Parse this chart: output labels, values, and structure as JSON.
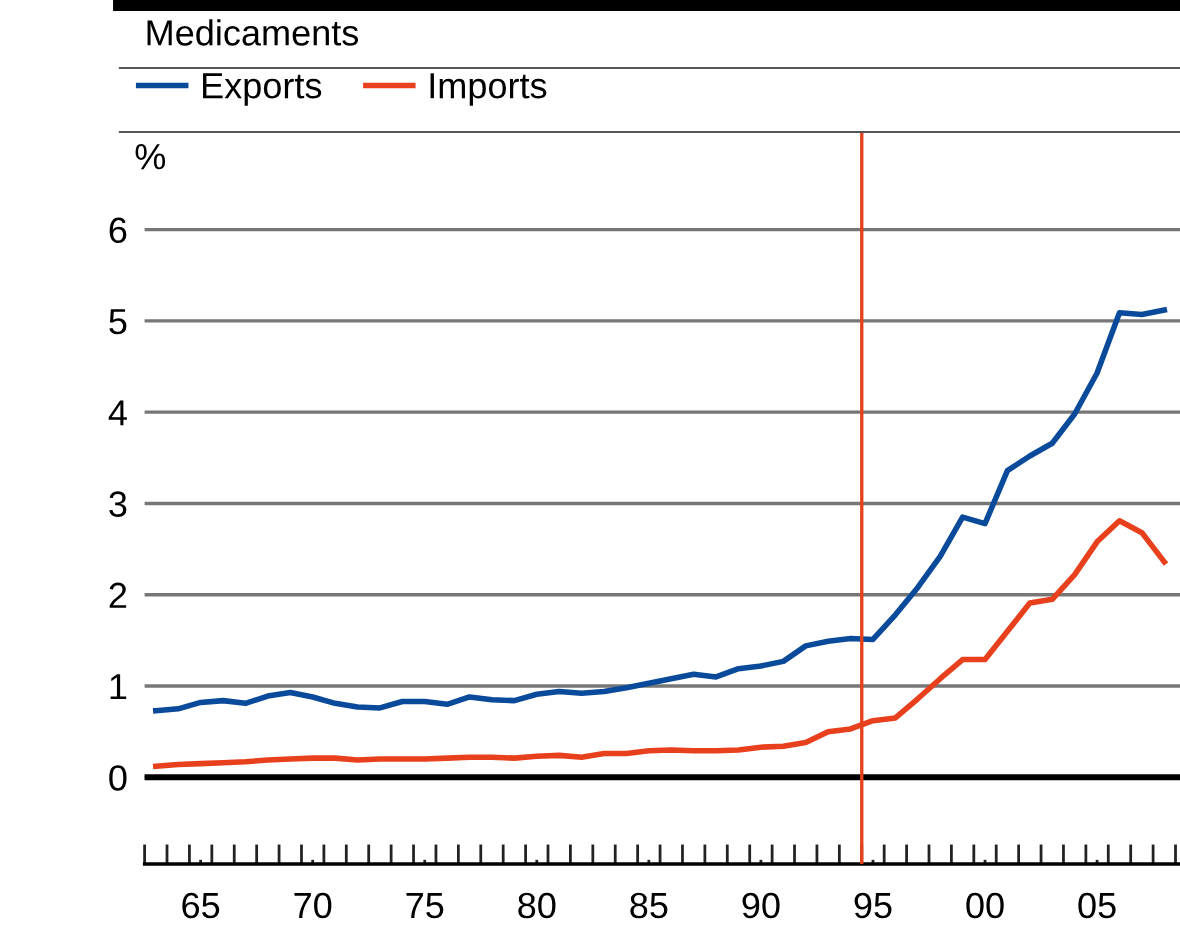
{
  "chart_data": {
    "type": "line",
    "title": "Medicaments",
    "ylabel": "%",
    "x": [
      1963,
      1964,
      1965,
      1966,
      1967,
      1968,
      1969,
      1970,
      1971,
      1972,
      1973,
      1974,
      1975,
      1976,
      1977,
      1978,
      1979,
      1980,
      1981,
      1982,
      1983,
      1984,
      1985,
      1986,
      1987,
      1988,
      1989,
      1990,
      1991,
      1992,
      1993,
      1994,
      1995,
      1996,
      1997,
      1998,
      1999,
      2000,
      2001,
      2002,
      2003,
      2004,
      2005,
      2006,
      2007,
      2008
    ],
    "series": [
      {
        "name": "Exports",
        "color": "#0a4a9a",
        "values": [
          0.73,
          0.75,
          0.82,
          0.84,
          0.81,
          0.89,
          0.93,
          0.88,
          0.81,
          0.77,
          0.76,
          0.83,
          0.83,
          0.8,
          0.88,
          0.85,
          0.84,
          0.91,
          0.94,
          0.92,
          0.94,
          0.98,
          1.03,
          1.08,
          1.13,
          1.1,
          1.19,
          1.22,
          1.27,
          1.44,
          1.49,
          1.52,
          1.51,
          1.78,
          2.08,
          2.42,
          2.85,
          2.78,
          3.36,
          3.52,
          3.66,
          3.98,
          4.43,
          5.09,
          5.07,
          5.12
        ]
      },
      {
        "name": "Imports",
        "color": "#e8401c",
        "values": [
          0.12,
          0.14,
          0.15,
          0.16,
          0.17,
          0.19,
          0.2,
          0.21,
          0.21,
          0.19,
          0.2,
          0.2,
          0.2,
          0.21,
          0.22,
          0.22,
          0.21,
          0.23,
          0.24,
          0.22,
          0.26,
          0.26,
          0.29,
          0.3,
          0.29,
          0.29,
          0.3,
          0.33,
          0.34,
          0.38,
          0.5,
          0.53,
          0.62,
          0.65,
          0.86,
          1.08,
          1.29,
          1.29,
          1.6,
          1.91,
          1.95,
          2.22,
          2.58,
          2.81,
          2.68,
          2.36
        ]
      }
    ],
    "xlim": [
      1962.5,
      2008.7
    ],
    "xticks": [
      {
        "value": 1965,
        "label": "65"
      },
      {
        "value": 1970,
        "label": "70"
      },
      {
        "value": 1975,
        "label": "75"
      },
      {
        "value": 1980,
        "label": "80"
      },
      {
        "value": 1985,
        "label": "85"
      },
      {
        "value": 1990,
        "label": "90"
      },
      {
        "value": 1995,
        "label": "95"
      },
      {
        "value": 2000,
        "label": "00"
      },
      {
        "value": 2005,
        "label": "05"
      },
      {
        "value": 1962.5,
        "label": null
      },
      {
        "value": 1963.5,
        "label": null
      },
      {
        "value": 1964.5,
        "label": null
      },
      {
        "value": 1965.5,
        "label": null
      },
      {
        "value": 1966.5,
        "label": null
      },
      {
        "value": 1967.5,
        "label": null
      },
      {
        "value": 1968.5,
        "label": null
      },
      {
        "value": 1969.5,
        "label": null
      },
      {
        "value": 1970.5,
        "label": null
      },
      {
        "value": 1971.5,
        "label": null
      },
      {
        "value": 1972.5,
        "label": null
      },
      {
        "value": 1973.5,
        "label": null
      },
      {
        "value": 1974.5,
        "label": null
      },
      {
        "value": 1975.5,
        "label": null
      },
      {
        "value": 1976.5,
        "label": null
      },
      {
        "value": 1977.5,
        "label": null
      },
      {
        "value": 1978.5,
        "label": null
      },
      {
        "value": 1979.5,
        "label": null
      },
      {
        "value": 1980.5,
        "label": null
      },
      {
        "value": 1981.5,
        "label": null
      },
      {
        "value": 1982.5,
        "label": null
      },
      {
        "value": 1983.5,
        "label": null
      },
      {
        "value": 1984.5,
        "label": null
      },
      {
        "value": 1985.5,
        "label": null
      },
      {
        "value": 1986.5,
        "label": null
      },
      {
        "value": 1987.5,
        "label": null
      },
      {
        "value": 1988.5,
        "label": null
      },
      {
        "value": 1989.5,
        "label": null
      },
      {
        "value": 1990.5,
        "label": null
      },
      {
        "value": 1991.5,
        "label": null
      },
      {
        "value": 1992.5,
        "label": null
      },
      {
        "value": 1993.5,
        "label": null
      },
      {
        "value": 1994.5,
        "label": null
      },
      {
        "value": 1995.5,
        "label": null
      },
      {
        "value": 1996.5,
        "label": null
      },
      {
        "value": 1997.5,
        "label": null
      },
      {
        "value": 1998.5,
        "label": null
      },
      {
        "value": 1999.5,
        "label": null
      },
      {
        "value": 2000.5,
        "label": null
      },
      {
        "value": 2001.5,
        "label": null
      },
      {
        "value": 2002.5,
        "label": null
      },
      {
        "value": 2003.5,
        "label": null
      },
      {
        "value": 2004.5,
        "label": null
      },
      {
        "value": 2005.5,
        "label": null
      },
      {
        "value": 2006.5,
        "label": null
      },
      {
        "value": 2007.5,
        "label": null
      },
      {
        "value": 2008.5,
        "label": null
      }
    ],
    "ylim": [
      -0.95,
      7.07
    ],
    "yticks": [
      0,
      1,
      2,
      3,
      4,
      5,
      6
    ],
    "ref_lines": [
      {
        "axis": "x",
        "value": 1994.5,
        "color": "#e8401c"
      },
      {
        "axis": "y",
        "value": 0,
        "color": "#000000"
      }
    ],
    "grid": "y",
    "legend": "top left",
    "marker": "none",
    "line_style": "solid"
  }
}
